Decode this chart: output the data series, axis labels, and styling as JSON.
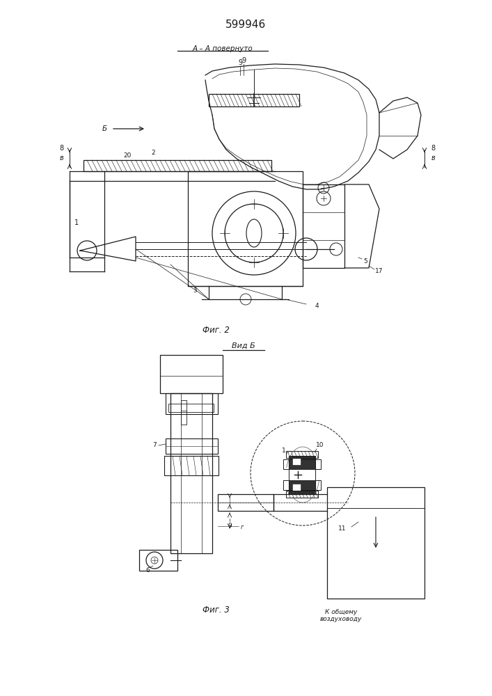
{
  "title": "599946",
  "fig2_label": "А – А повернуто",
  "fig2_caption": "Фиг. 2",
  "fig3_caption": "Фиг. 3",
  "fig3_view_label": "Вид Б",
  "fig3_bottom_text": "К общему\nвоздуховоду",
  "bg_color": "#ffffff",
  "line_color": "#1a1a1a"
}
